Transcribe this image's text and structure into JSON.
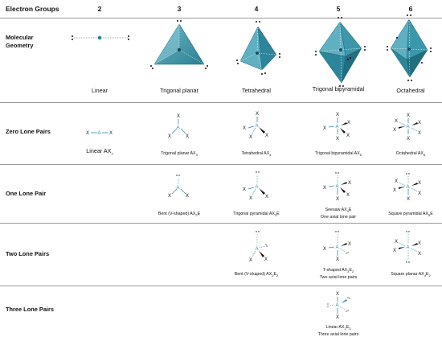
{
  "header": {
    "title": "Electron Groups",
    "columns": [
      "2",
      "3",
      "4",
      "5",
      "6"
    ]
  },
  "rows": {
    "molecular": "Molecular Geometry",
    "zero": "Zero Lone Pairs",
    "one": "One Lone Pair",
    "two": "Two Lone Pairs",
    "three": "Three Lone Pairs"
  },
  "geometry_captions": [
    "Linear",
    "Trigonal planar",
    "Tetrahedral",
    "Trigonal bipyramidal",
    "Octahedral"
  ],
  "zero_captions": [
    "Linear AX",
    "Trigonal planar AX",
    "Tetrahedral AX",
    "Trigonal bipyramidal AX",
    "Octahedral AX"
  ],
  "zero_subs": [
    "2",
    "3",
    "4",
    "5",
    "6"
  ],
  "one_captions": [
    "Bent (V-shaped) AX",
    "Trigonal pyramidal AX",
    "Seesaw AX",
    "Square pyramidal AX"
  ],
  "one_subs": [
    "2",
    "3",
    "4",
    "5"
  ],
  "one_suffix": "E",
  "one_extra": "One axial lone pair",
  "two_captions": [
    "Bent (V-shaped) AX",
    "T-shaped AX",
    "Square planar AX"
  ],
  "two_subs_x": [
    "2",
    "3",
    "4"
  ],
  "two_subs_e": "2",
  "two_extra": "Two axial lone pairs",
  "three_caption": "Linear AX",
  "three_sub_x": "2",
  "three_sub_e": "3",
  "three_extra": "Three axial lone pairs",
  "atom_labels": {
    "central": "A",
    "ligand": "X"
  },
  "colors": {
    "accent": "#2f8ea3",
    "accent_dark": "#1f6f80",
    "accent_light": "#8ec9d4",
    "separator": "#9a9a9a"
  }
}
